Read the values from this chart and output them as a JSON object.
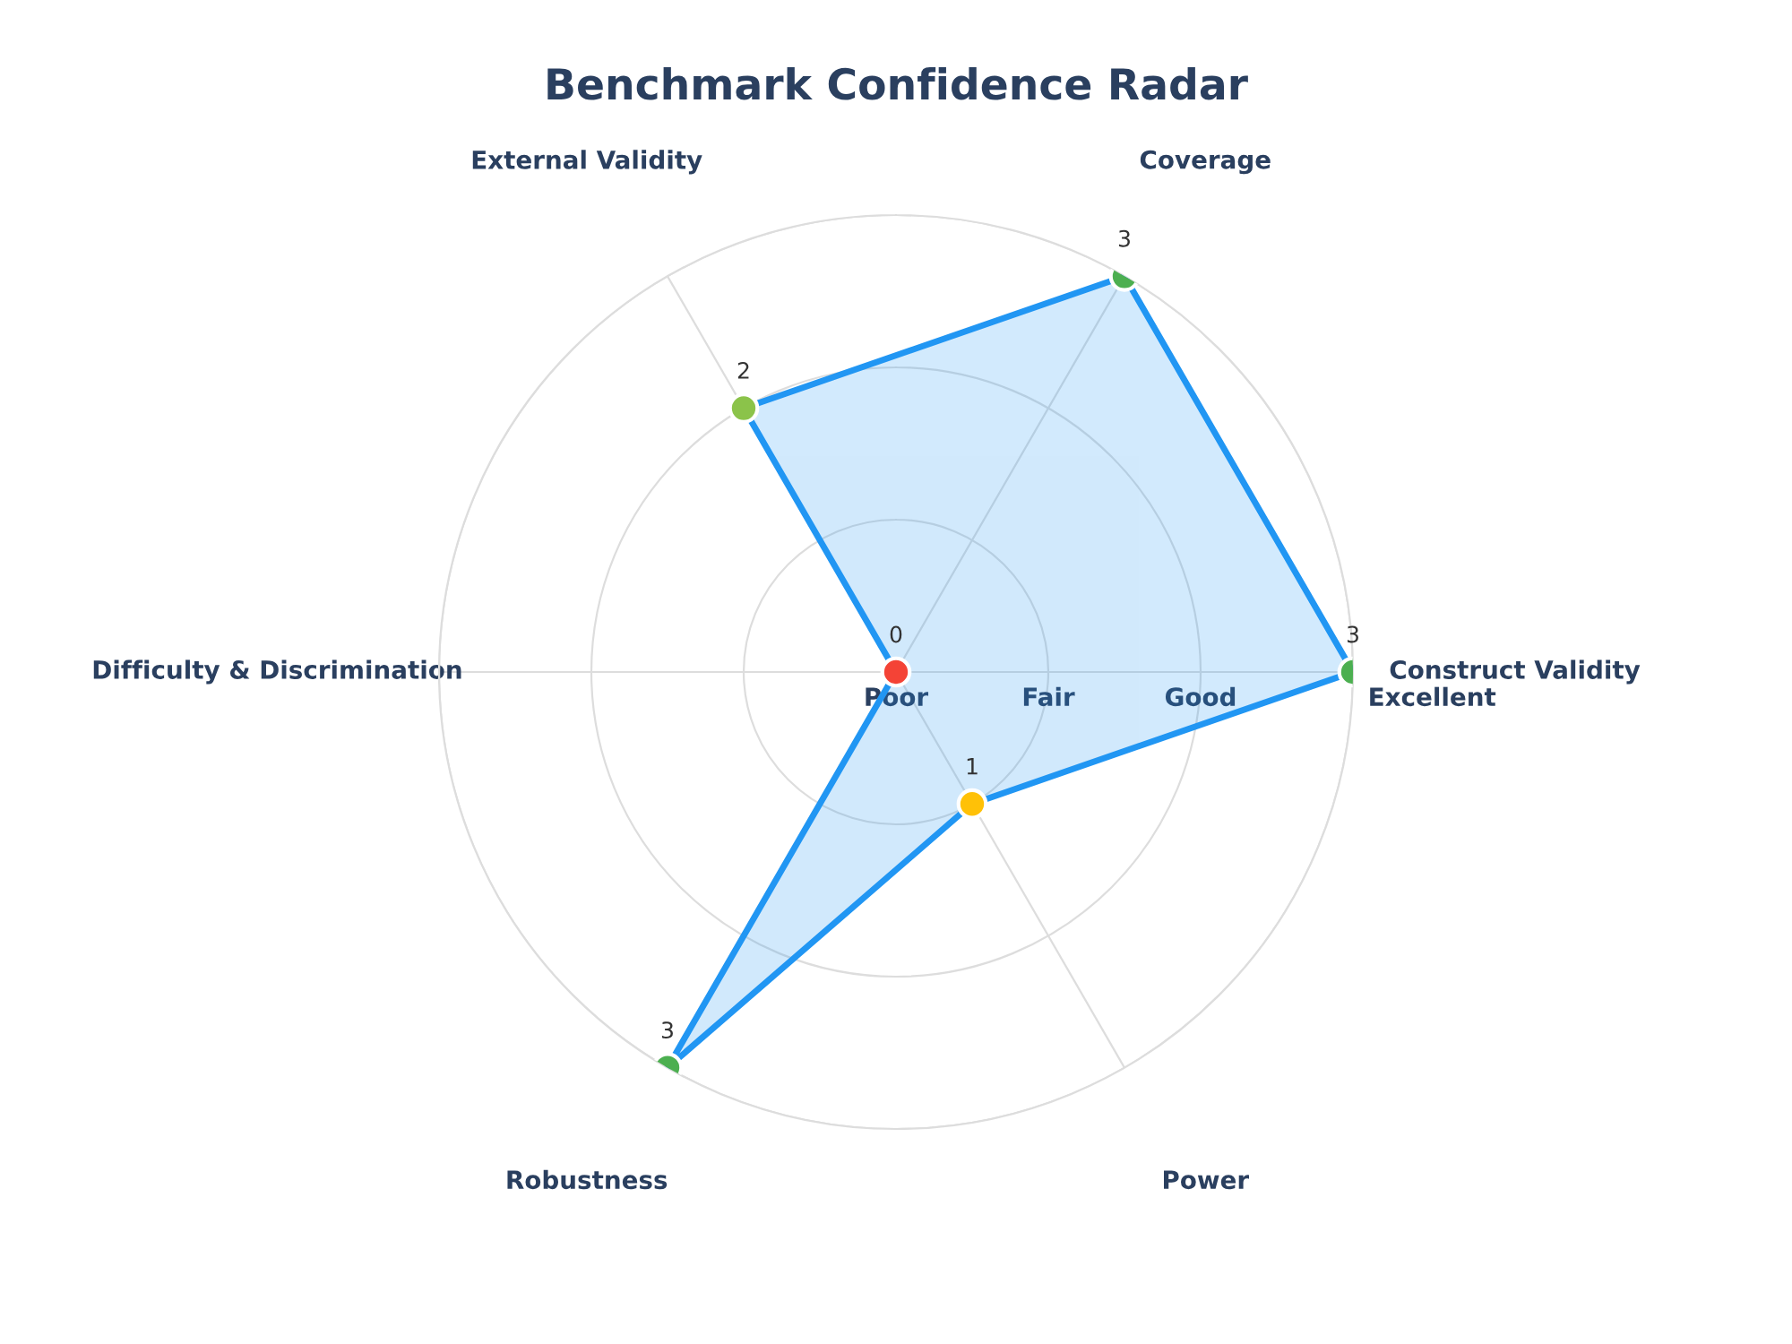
{
  "chart_data": {
    "type": "radar",
    "title": "Benchmark Confidence Radar",
    "categories": [
      "Coverage",
      "Construct Validity",
      "Power",
      "Robustness",
      "Difficulty & Discrimination",
      "External Validity"
    ],
    "series": [
      {
        "color": "#2196f3",
        "values": [
          3,
          3,
          1,
          3,
          0,
          2
        ],
        "colors": [
          "#4caf50",
          "#4caf50",
          "#ffc107",
          "#4caf50",
          "#f44336",
          "#8bc34a"
        ]
      }
    ],
    "ylim": [
      0,
      3
    ],
    "yticks": [
      {
        "value": 0,
        "label": "Poor"
      },
      {
        "value": 1,
        "label": "Fair"
      },
      {
        "value": 2,
        "label": "Good"
      },
      {
        "value": 3,
        "label": "Excellent"
      }
    ],
    "grid": true,
    "marker": "circle",
    "line_style": "solid",
    "data_labels": true
  }
}
